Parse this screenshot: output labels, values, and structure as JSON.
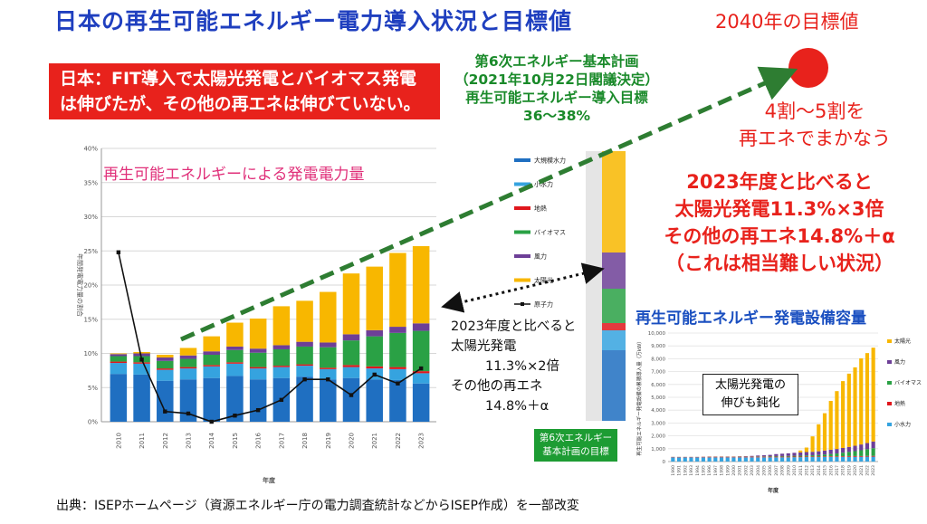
{
  "title": "日本の再生可能エネルギー電力導入状況と目標値",
  "red_box": {
    "line1": "日本：FIT導入で太陽光発電とバイオマス発電",
    "line2": "は伸びたが、その他の再エネは伸びていない。"
  },
  "plan_box": {
    "line1": "第6次エネルギー基本計画",
    "line2": "（2021年10月22日閣議決定）",
    "line3": "再生可能エネルギー導入目標",
    "line4": "36～38%"
  },
  "target_2040": "2040年の目標値",
  "share_text": {
    "line1": "4割～5割を",
    "line2": "再エネでまかなう"
  },
  "compare_big": {
    "line1": "2023年度と比べると",
    "line2": "太陽光発電11.3%×3倍",
    "line3": "その他の再エネ14.8%＋α",
    "line4": "（これは相当難しい状況）"
  },
  "compare_small": {
    "line1": "2023年度と比べると",
    "line2": "太陽光発電",
    "line3": "11.3%×2倍",
    "line4": "その他の再エネ",
    "line5": "14.8%＋α"
  },
  "green_label": {
    "line1": "第6次エネルギー",
    "line2": "基本計画の目標"
  },
  "capacity_title": "再生可能エネルギー発電設備容量",
  "solar_note": {
    "line1": "太陽光発電の",
    "line2": "伸びも鈍化"
  },
  "source": "出典：ISEPホームページ（資源エネルギー庁の電力調査統計などからISEP作成）を一部改変",
  "colors": {
    "hydro": "#1f6fc1",
    "small_hydro": "#35a3df",
    "geothermal": "#e0161c",
    "biomass": "#2aa145",
    "wind": "#6d3f97",
    "solar": "#f8b700",
    "nuclear": "#111111",
    "arrow": "#2e7d32",
    "title_blue": "#1f3fbf",
    "alert_red": "#e8221c"
  },
  "chart_data": [
    {
      "type": "bar",
      "stacked": true,
      "title": "再生可能エネルギーによる発電電力量",
      "xlabel": "年度",
      "ylabel": "年間発電電力量の割合",
      "ylim": [
        0,
        40
      ],
      "yticks": [
        "0%",
        "5%",
        "10%",
        "15%",
        "20%",
        "25%",
        "30%",
        "35%",
        "40%"
      ],
      "grid": true,
      "legend_position": "right",
      "categories": [
        "2010",
        "2011",
        "2012",
        "2013",
        "2014",
        "2015",
        "2016",
        "2017",
        "2018",
        "2019",
        "2020",
        "2021",
        "2022",
        "2023"
      ],
      "series": [
        {
          "name": "大規模水力",
          "key": "hydro",
          "values": [
            7.0,
            6.9,
            6.0,
            6.2,
            6.4,
            6.7,
            6.2,
            6.4,
            6.6,
            6.2,
            6.4,
            6.2,
            6.1,
            5.6
          ]
        },
        {
          "name": "小水力",
          "key": "small_hydro",
          "values": [
            1.6,
            1.6,
            1.6,
            1.6,
            1.7,
            1.8,
            1.6,
            1.6,
            1.6,
            1.5,
            1.6,
            1.6,
            1.6,
            1.5
          ]
        },
        {
          "name": "地熱",
          "key": "geothermal",
          "values": [
            0.2,
            0.2,
            0.2,
            0.2,
            0.2,
            0.2,
            0.2,
            0.2,
            0.2,
            0.2,
            0.3,
            0.3,
            0.3,
            0.3
          ]
        },
        {
          "name": "バイオマス",
          "key": "biomass",
          "values": [
            0.8,
            0.9,
            1.1,
            1.2,
            1.5,
            1.8,
            2.1,
            2.4,
            2.6,
            3.0,
            3.6,
            4.4,
            5.0,
            5.9
          ]
        },
        {
          "name": "風力",
          "key": "wind",
          "values": [
            0.3,
            0.4,
            0.5,
            0.5,
            0.5,
            0.5,
            0.6,
            0.6,
            0.7,
            0.7,
            0.9,
            0.9,
            0.9,
            1.1
          ]
        },
        {
          "name": "太陽光",
          "key": "solar",
          "values": [
            0.1,
            0.2,
            0.4,
            1.1,
            2.2,
            3.5,
            4.4,
            5.7,
            6.0,
            7.4,
            8.9,
            9.3,
            10.8,
            11.3
          ]
        },
        {
          "name": "原子力",
          "key": "nuclear",
          "line": true,
          "values": [
            24.8,
            9.1,
            1.5,
            1.2,
            0.0,
            0.9,
            1.7,
            3.2,
            6.2,
            6.2,
            3.9,
            6.9,
            5.6,
            7.8
          ]
        }
      ]
    },
    {
      "type": "bar",
      "stacked": true,
      "title": "再生可能エネルギー発電設備容量",
      "ylabel": "再生可能エネルギー発電設備の累積導入量（万kW）",
      "xlabel": "年度",
      "ylim": [
        0,
        10000
      ],
      "yticks": [
        "0",
        "1,000",
        "2,000",
        "3,000",
        "4,000",
        "5,000",
        "6,000",
        "7,000",
        "8,000",
        "9,000",
        "10,000"
      ],
      "grid": true,
      "legend_position": "right",
      "categories": [
        "1990",
        "1991",
        "1992",
        "1993",
        "1994",
        "1995",
        "1996",
        "1997",
        "1998",
        "1999",
        "2000",
        "2001",
        "2002",
        "2003",
        "2004",
        "2005",
        "2006",
        "2007",
        "2008",
        "2009",
        "2010",
        "2011",
        "2012",
        "2013",
        "2014",
        "2015",
        "2016",
        "2017",
        "2018",
        "2019",
        "2020",
        "2021",
        "2022",
        "2023"
      ],
      "series": [
        {
          "name": "小水力",
          "key": "small_hydro",
          "values": [
            330,
            330,
            330,
            330,
            330,
            330,
            330,
            330,
            330,
            330,
            330,
            330,
            330,
            330,
            330,
            330,
            330,
            330,
            330,
            330,
            340,
            340,
            350,
            350,
            350,
            360,
            360,
            360,
            370,
            370,
            370,
            370,
            380,
            380
          ]
        },
        {
          "name": "地熱",
          "key": "geothermal",
          "values": [
            30,
            30,
            30,
            30,
            30,
            40,
            50,
            50,
            50,
            50,
            50,
            50,
            50,
            50,
            50,
            50,
            50,
            50,
            50,
            50,
            50,
            50,
            50,
            50,
            50,
            50,
            50,
            50,
            50,
            60,
            60,
            60,
            60,
            60
          ]
        },
        {
          "name": "バイオマス",
          "key": "biomass",
          "values": [
            5,
            5,
            5,
            5,
            5,
            5,
            10,
            10,
            10,
            10,
            10,
            20,
            20,
            20,
            30,
            30,
            40,
            50,
            50,
            60,
            60,
            70,
            80,
            90,
            110,
            140,
            180,
            220,
            270,
            320,
            380,
            450,
            520,
            600
          ]
        },
        {
          "name": "風力",
          "key": "wind",
          "values": [
            0,
            0,
            0,
            0,
            0,
            0,
            0,
            0,
            0,
            0,
            0,
            10,
            20,
            40,
            60,
            80,
            100,
            150,
            180,
            200,
            230,
            250,
            260,
            270,
            290,
            310,
            330,
            350,
            370,
            390,
            420,
            450,
            480,
            520
          ]
        },
        {
          "name": "太陽光",
          "key": "solar",
          "values": [
            0,
            0,
            0,
            0,
            0,
            0,
            0,
            0,
            0,
            0,
            0,
            0,
            0,
            0,
            0,
            0,
            0,
            0,
            0,
            0,
            0,
            150,
            350,
            1200,
            2100,
            2900,
            3800,
            4500,
            5200,
            5700,
            6100,
            6700,
            7000,
            7300
          ]
        }
      ]
    }
  ]
}
